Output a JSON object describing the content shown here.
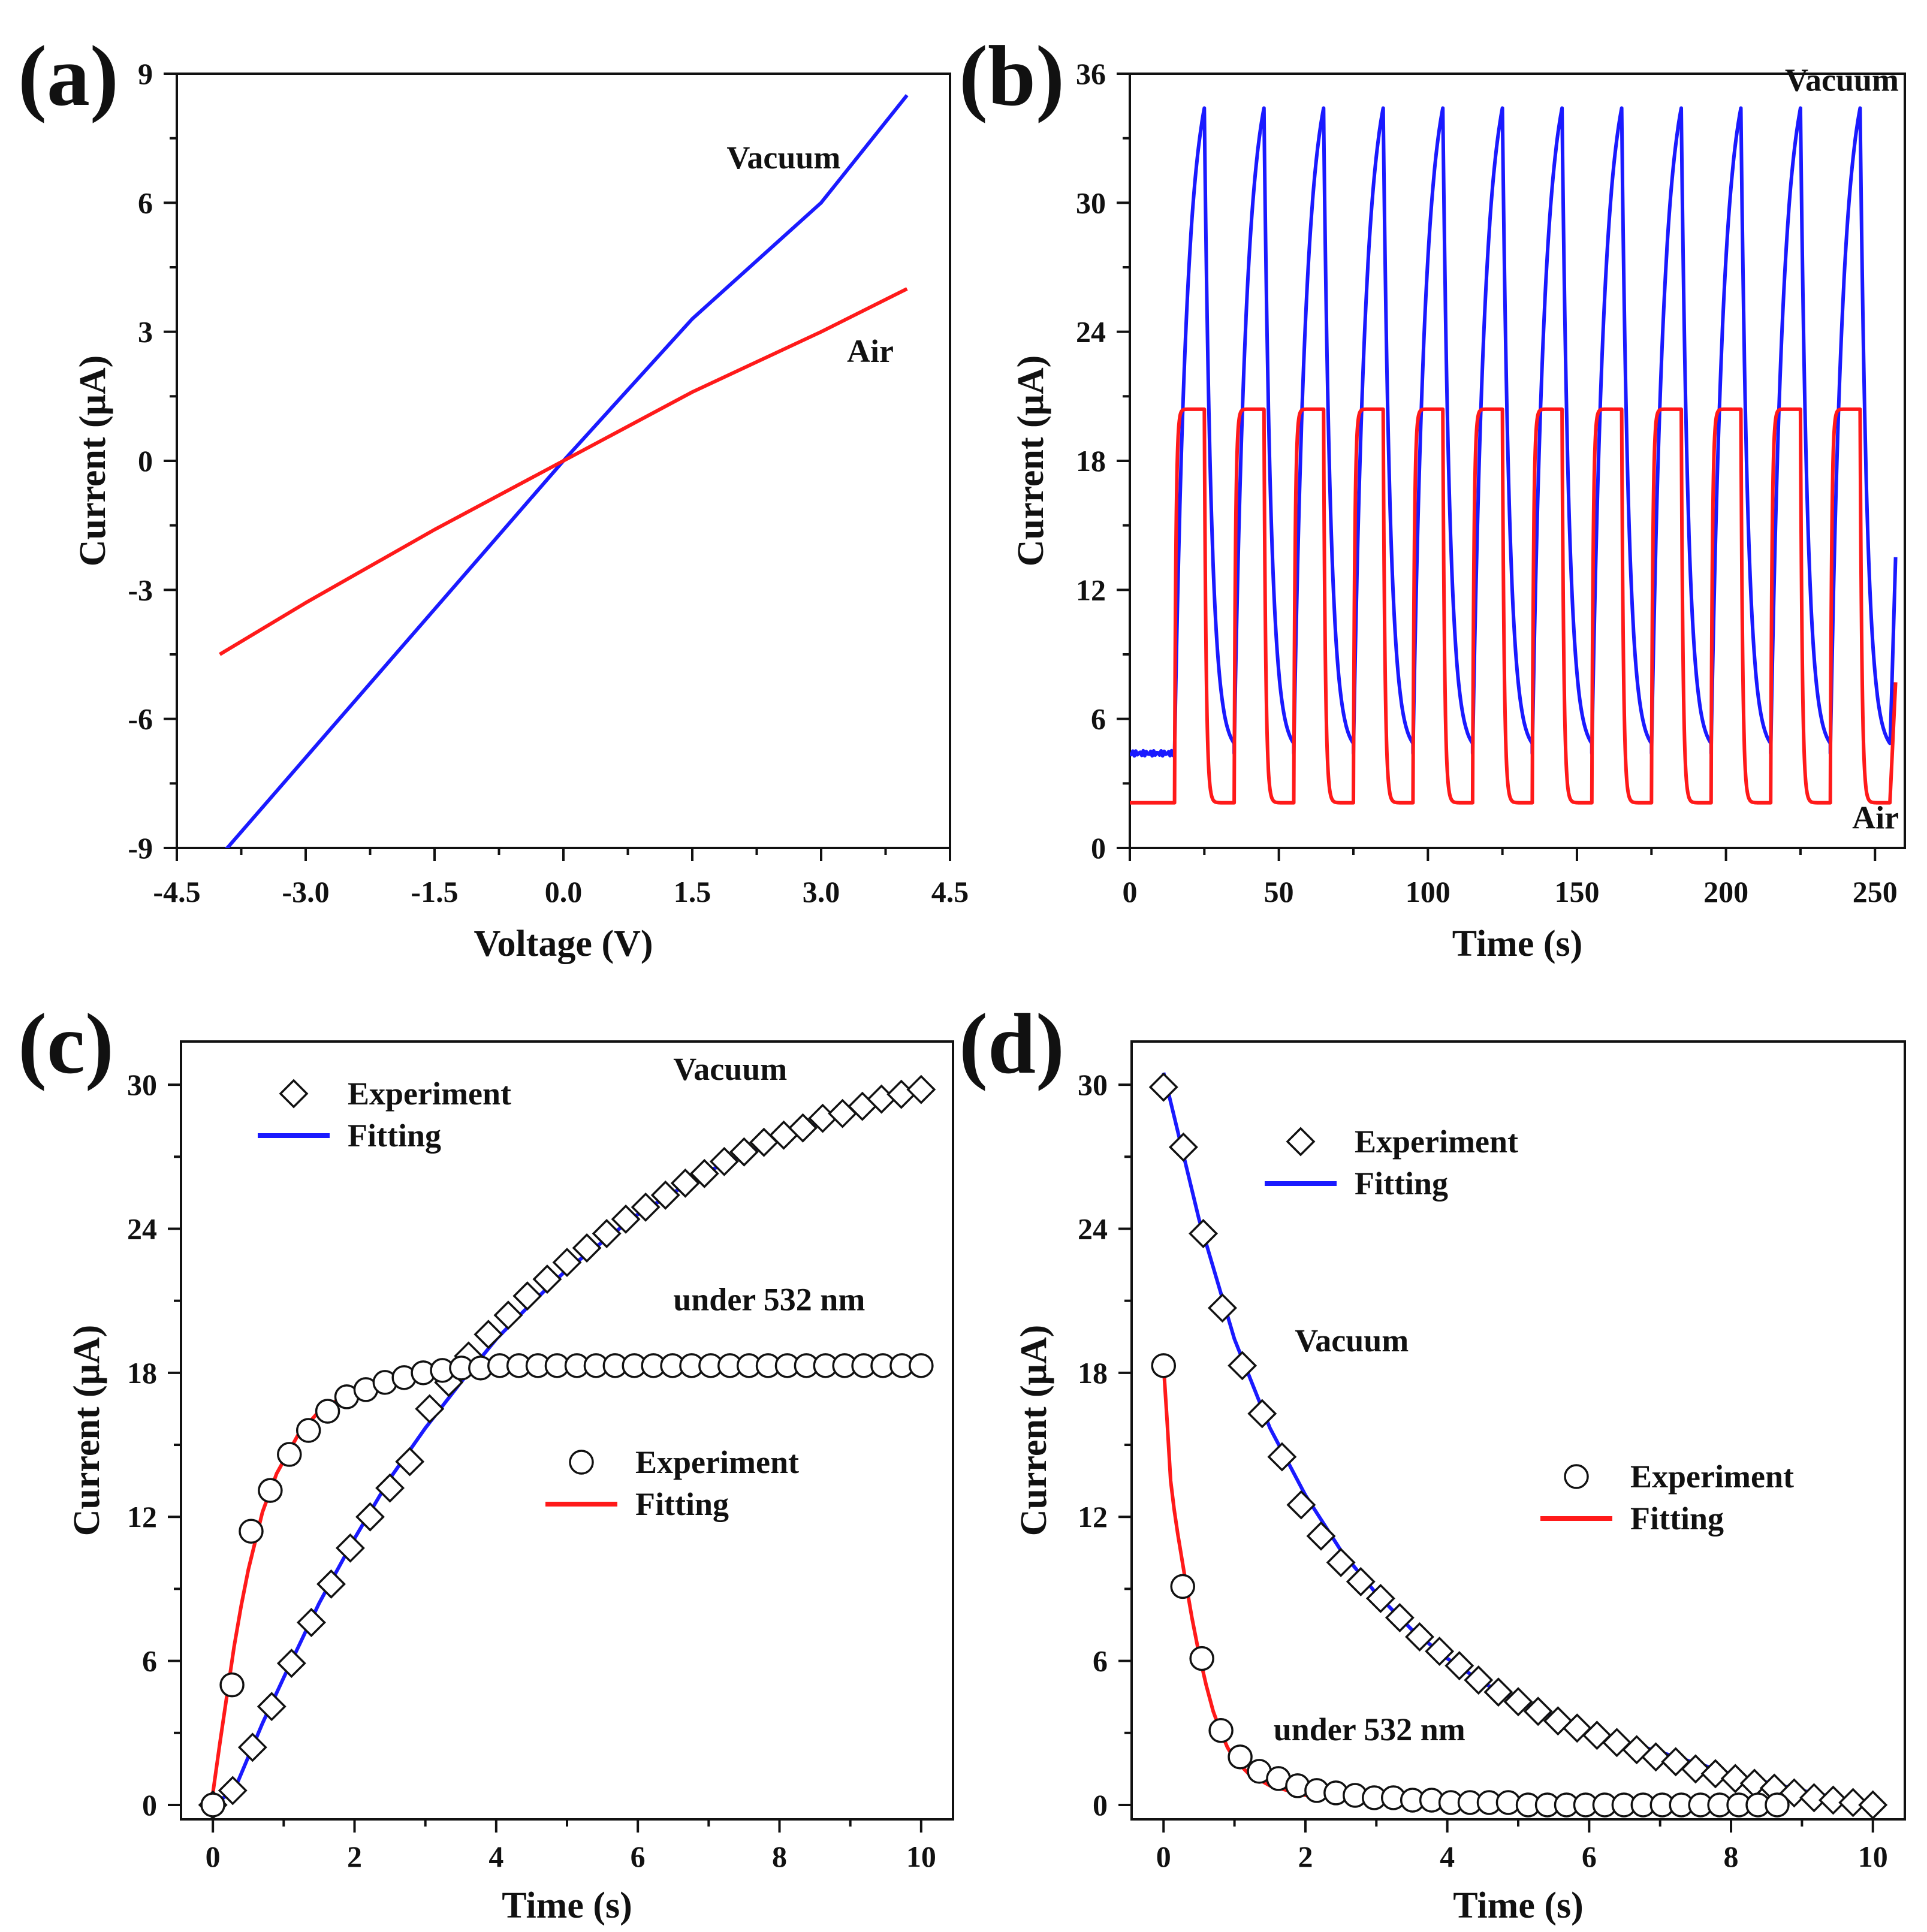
{
  "figure": {
    "background": "#ffffff",
    "colors": {
      "vacuum": "#1a1aff",
      "air": "#ff1a1a",
      "axis": "#111111"
    }
  },
  "chart_data": [
    {
      "id": "a",
      "panel_label": "(a)",
      "type": "line",
      "xlabel": "Voltage (V)",
      "ylabel": "Current (μA)",
      "xlim": [
        -4.5,
        4.5
      ],
      "ylim": [
        -9,
        9
      ],
      "xticks": [
        -4.5,
        -3.0,
        -1.5,
        0.0,
        1.5,
        3.0,
        4.5
      ],
      "xtick_labels": [
        "-4.5",
        "-3.0",
        "-1.5",
        "0.0",
        "1.5",
        "3.0",
        "4.5"
      ],
      "yticks": [
        -9,
        -6,
        -3,
        0,
        3,
        6,
        9
      ],
      "ytick_labels": [
        "-9",
        "-6",
        "-3",
        "0",
        "3",
        "6",
        "9"
      ],
      "series": [
        {
          "name": "Vacuum",
          "color": "#1a1aff",
          "x": [
            -4.0,
            -3.0,
            -2.0,
            -1.0,
            0.0,
            1.5,
            3.0,
            4.0
          ],
          "y": [
            -9.2,
            -6.9,
            -4.6,
            -2.3,
            0.0,
            3.3,
            6.0,
            8.5
          ]
        },
        {
          "name": "Air",
          "color": "#ff1a1a",
          "x": [
            -4.0,
            -3.0,
            -1.5,
            0.0,
            1.5,
            3.0,
            4.0
          ],
          "y": [
            -4.5,
            -3.3,
            -1.6,
            0.0,
            1.6,
            3.0,
            4.0
          ]
        }
      ],
      "annotations": [
        {
          "text": "Vacuum",
          "x": 1.9,
          "y": 6.8,
          "anchor": "start"
        },
        {
          "text": "Air",
          "x": 3.3,
          "y": 2.3,
          "anchor": "start"
        }
      ]
    },
    {
      "id": "b",
      "panel_label": "(b)",
      "type": "line",
      "xlabel": "Time (s)",
      "ylabel": "Current (μA)",
      "xlim": [
        0,
        260
      ],
      "ylim": [
        0,
        36
      ],
      "xticks": [
        0,
        50,
        100,
        150,
        200,
        250
      ],
      "xtick_labels": [
        "0",
        "50",
        "100",
        "150",
        "200",
        "250"
      ],
      "yticks": [
        0,
        6,
        12,
        18,
        24,
        30,
        36
      ],
      "ytick_labels": [
        "0",
        "6",
        "12",
        "18",
        "24",
        "30",
        "36"
      ],
      "cycle": {
        "period_s": 20,
        "on_s": 10,
        "first_on_s": 15,
        "n_cycles": 12,
        "end_s": 257
      },
      "series": [
        {
          "name": "Vacuum",
          "color": "#1a1aff",
          "baseline": 4.4,
          "peak": 34.4,
          "final_value": 14.0
        },
        {
          "name": "Air",
          "color": "#ff1a1a",
          "baseline": 2.1,
          "peak": 20.4,
          "final_value": 8.0
        }
      ],
      "annotations": [
        {
          "text": "Vacuum",
          "x": 258,
          "y": 35.2,
          "anchor": "end"
        },
        {
          "text": "Air",
          "x": 258,
          "y": 0.9,
          "anchor": "end"
        }
      ]
    },
    {
      "id": "c",
      "panel_label": "(c)",
      "type": "line",
      "xlabel": "Time (s)",
      "ylabel": "Current (μA)",
      "xlim": [
        -0.45,
        10.45
      ],
      "ylim": [
        -0.6,
        31.8
      ],
      "xticks": [
        0,
        2,
        4,
        6,
        8,
        10
      ],
      "xtick_labels": [
        "0",
        "2",
        "4",
        "6",
        "8",
        "10"
      ],
      "yticks": [
        0,
        6,
        12,
        18,
        24,
        30
      ],
      "ytick_labels": [
        "0",
        "6",
        "12",
        "18",
        "24",
        "30"
      ],
      "series": [
        {
          "name": "Vacuum experiment",
          "kind": "marker",
          "marker": "diamond",
          "x": [
            0.0,
            0.28,
            0.56,
            0.83,
            1.11,
            1.39,
            1.67,
            1.94,
            2.22,
            2.5,
            2.78,
            3.06,
            3.33,
            3.61,
            3.89,
            4.17,
            4.44,
            4.72,
            5.0,
            5.28,
            5.56,
            5.83,
            6.11,
            6.39,
            6.67,
            6.94,
            7.22,
            7.5,
            7.78,
            8.06,
            8.33,
            8.61,
            8.89,
            9.17,
            9.44,
            9.72,
            10.0
          ],
          "y": [
            0.0,
            0.6,
            2.4,
            4.1,
            5.9,
            7.6,
            9.2,
            10.7,
            12.0,
            13.2,
            14.3,
            16.5,
            17.6,
            18.7,
            19.6,
            20.4,
            21.2,
            21.9,
            22.6,
            23.2,
            23.8,
            24.4,
            24.9,
            25.4,
            25.9,
            26.3,
            26.8,
            27.2,
            27.6,
            27.9,
            28.2,
            28.6,
            28.8,
            29.1,
            29.4,
            29.6,
            29.8
          ]
        },
        {
          "name": "Vacuum fitting",
          "kind": "line",
          "color": "#1a1aff",
          "x": [
            0.0,
            0.3,
            0.7,
            1.0,
            1.5,
            2.0,
            2.5,
            3.0,
            3.5,
            4.0,
            4.5,
            5.0,
            6.0,
            7.0,
            8.0,
            9.0,
            10.0
          ],
          "y": [
            0.0,
            0.6,
            3.4,
            5.3,
            8.4,
            11.1,
            13.6,
            15.7,
            17.6,
            19.4,
            20.9,
            22.3,
            24.6,
            26.4,
            27.8,
            28.9,
            29.8
          ]
        },
        {
          "name": "Air experiment",
          "kind": "marker",
          "marker": "circle",
          "x": [
            0.0,
            0.27,
            0.54,
            0.81,
            1.08,
            1.35,
            1.62,
            1.89,
            2.16,
            2.43,
            2.7,
            2.97,
            3.24,
            3.51,
            3.78,
            4.05,
            4.32,
            4.59,
            4.86,
            5.14,
            5.41,
            5.68,
            5.95,
            6.22,
            6.49,
            6.76,
            7.03,
            7.3,
            7.57,
            7.84,
            8.11,
            8.38,
            8.65,
            8.92,
            9.19,
            9.46,
            9.73,
            10.0
          ],
          "y": [
            0.0,
            5.0,
            11.4,
            13.1,
            14.6,
            15.6,
            16.4,
            17.0,
            17.3,
            17.6,
            17.8,
            18.0,
            18.1,
            18.2,
            18.2,
            18.3,
            18.3,
            18.3,
            18.3,
            18.3,
            18.3,
            18.3,
            18.3,
            18.3,
            18.3,
            18.3,
            18.3,
            18.3,
            18.3,
            18.3,
            18.3,
            18.3,
            18.3,
            18.3,
            18.3,
            18.3,
            18.3,
            18.3
          ]
        },
        {
          "name": "Air fitting",
          "kind": "line",
          "color": "#ff1a1a",
          "x": [
            0.0,
            0.1,
            0.2,
            0.3,
            0.4,
            0.5,
            0.7,
            0.9,
            1.2,
            1.5,
            2.0,
            2.5,
            3.0,
            3.5,
            4.0,
            6.0,
            8.0,
            10.0
          ],
          "y": [
            0.5,
            2.6,
            4.6,
            6.6,
            8.3,
            9.8,
            12.2,
            13.8,
            15.4,
            16.4,
            17.3,
            17.8,
            18.0,
            18.2,
            18.3,
            18.3,
            18.3,
            18.3
          ]
        }
      ],
      "legends": [
        {
          "entries": [
            {
              "label": "Experiment",
              "symbol": "diamond"
            },
            {
              "label": "Fitting",
              "symbol": "line",
              "color": "#1a1aff"
            }
          ]
        },
        {
          "entries": [
            {
              "label": "Experiment",
              "symbol": "circle"
            },
            {
              "label": "Fitting",
              "symbol": "line",
              "color": "#ff1a1a"
            }
          ]
        }
      ],
      "annotations": [
        {
          "text": "Vacuum",
          "x": 6.5,
          "y": 30.2,
          "anchor": "start"
        },
        {
          "text": "under 532 nm",
          "x": 6.5,
          "y": 20.6,
          "anchor": "start"
        }
      ]
    },
    {
      "id": "d",
      "panel_label": "(d)",
      "type": "line",
      "xlabel": "Time (s)",
      "ylabel": "Current (μA)",
      "xlim": [
        -0.45,
        10.45
      ],
      "ylim": [
        -0.6,
        31.8
      ],
      "xticks": [
        0,
        2,
        4,
        6,
        8,
        10
      ],
      "xtick_labels": [
        "0",
        "2",
        "4",
        "6",
        "8",
        "10"
      ],
      "yticks": [
        0,
        6,
        12,
        18,
        24,
        30
      ],
      "ytick_labels": [
        "0",
        "6",
        "12",
        "18",
        "24",
        "30"
      ],
      "series": [
        {
          "name": "Vacuum experiment",
          "kind": "marker",
          "marker": "diamond",
          "x": [
            0.0,
            0.28,
            0.56,
            0.83,
            1.11,
            1.39,
            1.67,
            1.94,
            2.22,
            2.5,
            2.78,
            3.06,
            3.33,
            3.61,
            3.89,
            4.17,
            4.44,
            4.72,
            5.0,
            5.28,
            5.56,
            5.83,
            6.11,
            6.39,
            6.67,
            6.94,
            7.22,
            7.5,
            7.78,
            8.06,
            8.33,
            8.61,
            8.89,
            9.17,
            9.44,
            9.72,
            10.0
          ],
          "y": [
            29.9,
            27.4,
            23.8,
            20.7,
            18.3,
            16.3,
            14.5,
            12.5,
            11.2,
            10.1,
            9.3,
            8.6,
            7.8,
            7.0,
            6.4,
            5.8,
            5.2,
            4.7,
            4.3,
            3.9,
            3.5,
            3.2,
            2.9,
            2.6,
            2.3,
            2.0,
            1.8,
            1.5,
            1.3,
            1.1,
            0.9,
            0.7,
            0.5,
            0.3,
            0.2,
            0.1,
            0.0
          ]
        },
        {
          "name": "Vacuum fitting",
          "kind": "line",
          "color": "#1a1aff",
          "x": [
            0.0,
            0.5,
            1.0,
            1.5,
            2.0,
            2.5,
            3.0,
            3.5,
            4.0,
            4.5,
            5.0,
            6.0,
            7.0,
            8.0,
            9.0,
            10.0
          ],
          "y": [
            30.5,
            24.4,
            19.4,
            15.7,
            12.9,
            10.6,
            8.8,
            7.3,
            6.1,
            5.1,
            4.3,
            3.1,
            2.2,
            1.3,
            0.6,
            0.0
          ]
        },
        {
          "name": "Air experiment",
          "kind": "marker",
          "marker": "circle",
          "x": [
            0.0,
            0.27,
            0.54,
            0.81,
            1.08,
            1.35,
            1.62,
            1.89,
            2.16,
            2.43,
            2.7,
            2.97,
            3.24,
            3.51,
            3.78,
            4.05,
            4.32,
            4.59,
            4.86,
            5.14,
            5.41,
            5.68,
            5.95,
            6.22,
            6.49,
            6.76,
            7.03,
            7.3,
            7.57,
            7.84,
            8.11,
            8.38,
            8.65
          ],
          "y": [
            18.3,
            9.1,
            6.1,
            3.1,
            2.0,
            1.4,
            1.1,
            0.8,
            0.6,
            0.5,
            0.4,
            0.3,
            0.3,
            0.2,
            0.2,
            0.1,
            0.1,
            0.1,
            0.1,
            0.0,
            0.0,
            0.0,
            0.0,
            0.0,
            0.0,
            0.0,
            0.0,
            0.0,
            0.0,
            0.0,
            0.0,
            0.0,
            0.0
          ]
        },
        {
          "name": "Air fitting",
          "kind": "line",
          "color": "#ff1a1a",
          "x": [
            0.0,
            0.05,
            0.1,
            0.15,
            0.2,
            0.3,
            0.4,
            0.5,
            0.6,
            0.7,
            0.8,
            0.9,
            1.0,
            1.2,
            1.5,
            2.0,
            3.0,
            4.0,
            6.0,
            8.0,
            8.8
          ],
          "y": [
            18.3,
            16.0,
            13.5,
            12.3,
            11.3,
            9.5,
            7.8,
            6.3,
            5.0,
            3.9,
            3.1,
            2.4,
            1.9,
            1.3,
            0.8,
            0.4,
            0.15,
            0.05,
            0.0,
            0.0,
            0.0
          ]
        }
      ],
      "legends": [
        {
          "entries": [
            {
              "label": "Experiment",
              "symbol": "diamond"
            },
            {
              "label": "Fitting",
              "symbol": "line",
              "color": "#1a1aff"
            }
          ]
        },
        {
          "entries": [
            {
              "label": "Experiment",
              "symbol": "circle"
            },
            {
              "label": "Fitting",
              "symbol": "line",
              "color": "#ff1a1a"
            }
          ]
        }
      ],
      "annotations": [
        {
          "text": "Vacuum",
          "x": 1.85,
          "y": 18.9,
          "anchor": "start"
        },
        {
          "text": "under 532 nm",
          "x": 1.55,
          "y": 2.7,
          "anchor": "start"
        }
      ]
    }
  ]
}
